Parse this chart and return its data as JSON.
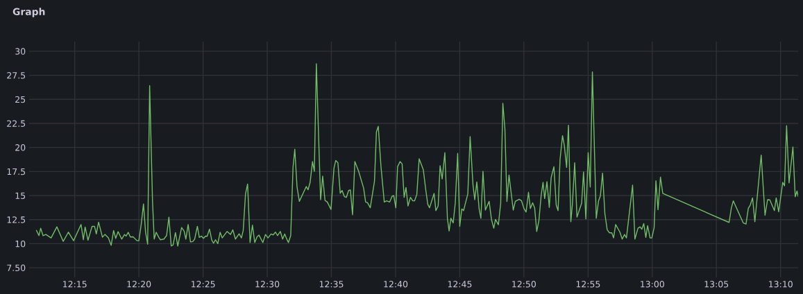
{
  "chart_data": {
    "type": "line",
    "title": "Graph",
    "xlim": [
      12.1908,
      13.1895
    ],
    "xticks": [
      {
        "value": 12.25,
        "label": "12:15"
      },
      {
        "value": 12.3333,
        "label": "12:20"
      },
      {
        "value": 12.4167,
        "label": "12:25"
      },
      {
        "value": 12.5,
        "label": "12:30"
      },
      {
        "value": 12.5833,
        "label": "12:35"
      },
      {
        "value": 12.6667,
        "label": "12:40"
      },
      {
        "value": 12.75,
        "label": "12:45"
      },
      {
        "value": 12.8333,
        "label": "12:50"
      },
      {
        "value": 12.9167,
        "label": "12:55"
      },
      {
        "value": 13.0,
        "label": "13:00"
      },
      {
        "value": 13.0833,
        "label": "13:05"
      },
      {
        "value": 13.1667,
        "label": "13:10"
      }
    ],
    "ylim": [
      6.5,
      31
    ],
    "yticks": [
      {
        "value": 7.5,
        "label": "7.50"
      },
      10,
      12.5,
      15,
      17.5,
      20,
      22.5,
      25,
      27.5,
      30
    ],
    "grid": true,
    "marker": "none",
    "line_style": "solid",
    "series": [
      {
        "color": "#73bf69",
        "x": [
          12.2003,
          12.2035,
          12.2058,
          12.2088,
          12.2125,
          12.2193,
          12.2268,
          12.235,
          12.2418,
          12.2485,
          12.2582,
          12.2612,
          12.2635,
          12.2672,
          12.2725,
          12.2757,
          12.278,
          12.281,
          12.286,
          12.2892,
          12.2937,
          12.2973,
          12.3005,
          12.3032,
          12.3063,
          12.311,
          12.3147,
          12.3167,
          12.3195,
          12.3222,
          12.3258,
          12.3308,
          12.3333,
          12.3363,
          12.3393,
          12.342,
          12.3447,
          12.3473,
          12.351,
          12.3532,
          12.3558,
          12.3592,
          12.3613,
          12.3658,
          12.3693,
          12.3723,
          12.3753,
          12.3778,
          12.3808,
          12.3838,
          12.3888,
          12.392,
          12.3943,
          12.3973,
          12.4003,
          12.4033,
          12.4058,
          12.4093,
          12.4118,
          12.4145,
          12.4172,
          12.4198,
          12.422,
          12.425,
          12.428,
          12.4303,
          12.4328,
          12.4358,
          12.4388,
          12.4415,
          12.4478,
          12.4523,
          12.4553,
          12.4587,
          12.4635,
          12.4665,
          12.4688,
          12.4718,
          12.4745,
          12.4777,
          12.4808,
          12.4838,
          12.4868,
          12.4893,
          12.4943,
          12.4977,
          12.501,
          12.505,
          12.5077,
          12.5107,
          12.5133,
          12.517,
          12.52,
          12.5227,
          12.526,
          12.5275,
          12.5305,
          12.5335,
          12.5358,
          12.5387,
          12.5417,
          12.5462,
          12.5507,
          12.553,
          12.5557,
          12.5588,
          12.5612,
          12.5638,
          12.5693,
          12.572,
          12.575,
          12.578,
          12.5828,
          12.5867,
          12.589,
          12.5918,
          12.5948,
          12.5972,
          12.6003,
          12.6027,
          12.6057,
          12.608,
          12.6108,
          12.6138,
          12.6188,
          12.6252,
          12.6278,
          12.6303,
          12.6338,
          12.6393,
          12.6418,
          12.6442,
          12.6477,
          12.652,
          12.655,
          12.659,
          12.6622,
          12.6643,
          12.667,
          12.6693,
          12.6725,
          12.6752,
          12.6778,
          12.6802,
          12.6828,
          12.686,
          12.689,
          12.6913,
          12.6943,
          12.6973,
          12.7027,
          12.7058,
          12.7085,
          12.7108,
          12.7167,
          12.719,
          12.722,
          12.7245,
          12.7272,
          12.7307,
          12.734,
          12.7362,
          12.7385,
          12.7415,
          12.7442,
          12.7473,
          12.75,
          12.7527,
          12.755,
          12.7605,
          12.7635,
          12.7672,
          12.7695,
          12.7722,
          12.7752,
          12.7775,
          12.7802,
          12.7833,
          12.7882,
          12.7912,
          12.7942,
          12.7965,
          12.8002,
          12.8032,
          12.806,
          12.8087,
          12.8113,
          12.814,
          12.8195,
          12.8222,
          12.8272,
          12.8303,
          12.8333,
          12.8362,
          12.8393,
          12.8417,
          12.8447,
          12.8473,
          12.85,
          12.8528,
          12.8558,
          12.8582,
          12.8603,
          12.8633,
          12.8663,
          12.8687,
          12.8723,
          12.8753,
          12.8777,
          12.8803,
          12.8835,
          12.8858,
          12.8888,
          12.8912,
          12.8943,
          12.8963,
          12.8993,
          12.9023,
          12.9083,
          12.9108,
          12.9138,
          12.9168,
          12.9195,
          12.9223,
          12.9273,
          12.9303,
          12.9327,
          12.9355,
          12.9385,
          12.9415,
          12.9445,
          12.9475,
          12.9498,
          12.9525,
          12.958,
          12.961,
          12.964,
          12.9665,
          12.9745,
          12.9775,
          12.9815,
          12.9842,
          12.9865,
          12.989,
          12.9917,
          12.994,
          12.9972,
          12.9995,
          13.0025,
          13.0048,
          13.0075,
          13.0107,
          13.0137,
          13.0998,
          13.1028,
          13.1053,
          13.1182,
          13.1218,
          13.1248,
          13.1273,
          13.1303,
          13.1333,
          13.1415,
          13.1465,
          13.1498,
          13.1527,
          13.1587,
          13.161,
          13.1642,
          13.1695,
          13.1718,
          13.1745,
          13.1777,
          13.1827,
          13.1857,
          13.188,
          13.1895
        ],
        "values": [
          11.37,
          10.84,
          11.61,
          10.84,
          10.96,
          10.6,
          11.75,
          10.24,
          11.2,
          10.31,
          11.99,
          10.41,
          11.73,
          10.36,
          11.8,
          11.8,
          11.01,
          12.24,
          10.67,
          10.96,
          10.6,
          9.83,
          11.37,
          10.55,
          11.25,
          10.48,
          10.96,
          10.79,
          11.18,
          10.7,
          10.72,
          10.31,
          10.31,
          11.99,
          14.13,
          11.2,
          9.95,
          26.42,
          14.45,
          10.48,
          11.18,
          10.65,
          10.41,
          10.48,
          10.84,
          12.76,
          9.76,
          9.88,
          11.15,
          9.76,
          11.68,
          11.32,
          10.48,
          11.99,
          10.19,
          10.22,
          10.48,
          11.8,
          10.65,
          10.79,
          10.55,
          10.79,
          10.77,
          11.51,
          10.36,
          10.05,
          10.41,
          10.0,
          11.18,
          10.6,
          11.27,
          10.96,
          11.44,
          10.48,
          11.03,
          10.6,
          11.37,
          15.17,
          16.2,
          10.12,
          11.92,
          10.12,
          10.72,
          10.89,
          10.12,
          10.96,
          10.6,
          11.01,
          10.91,
          11.2,
          10.84,
          11.27,
          10.48,
          11.01,
          10.36,
          10.12,
          10.84,
          17.93,
          19.81,
          15.89,
          14.4,
          15.17,
          15.94,
          15.6,
          16.37,
          18.53,
          17.52,
          28.7,
          14.57,
          17.02,
          14.5,
          14.33,
          13.56,
          17.86,
          18.65,
          18.41,
          15.24,
          15.53,
          14.88,
          14.81,
          15.53,
          15.58,
          13.0,
          18.53,
          17.5,
          15.77,
          14.33,
          14.25,
          13.73,
          16.49,
          21.61,
          22.19,
          18.05,
          14.33,
          14.45,
          14.33,
          14.93,
          15.0,
          13.73,
          18.0,
          18.53,
          18.29,
          14.81,
          15.84,
          13.92,
          14.81,
          14.45,
          14.45,
          15.12,
          18.82,
          17.69,
          15.65,
          14.09,
          13.73,
          15.22,
          13.44,
          13.92,
          18.1,
          16.73,
          19.45,
          12.64,
          11.32,
          12.64,
          12.16,
          14.21,
          19.38,
          11.8,
          13.61,
          13.44,
          15.17,
          21.13,
          16.13,
          14.57,
          16.42,
          13.61,
          12.64,
          17.52,
          13.49,
          14.4,
          12.52,
          11.61,
          12.52,
          11.97,
          14.21,
          24.59,
          21.9,
          14.38,
          17.14,
          13.49,
          14.4,
          14.62,
          14.45,
          13.68,
          13.29,
          15.34,
          13.65,
          14.25,
          13.73,
          11.27,
          12.4,
          15.05,
          16.37,
          14.69,
          16.44,
          13.77,
          16.85,
          18.0,
          14.01,
          13.44,
          18.77,
          21.23,
          20.22,
          17.93,
          22.31,
          12.28,
          14.09,
          18.41,
          12.76,
          14.21,
          17.45,
          12.57,
          19.45,
          15.89,
          27.86,
          12.64,
          14.45,
          14.98,
          17.33,
          13.13,
          11.44,
          11.13,
          11.13,
          10.6,
          11.99,
          11.2,
          10.48,
          10.96,
          10.6,
          16.08,
          10.48,
          11.61,
          11.75,
          11.51,
          12.09,
          10.65,
          11.87,
          10.6,
          10.6,
          11.68,
          16.54,
          13.53,
          16.92,
          15.22,
          12.21,
          13.73,
          14.45,
          12.16,
          12.04,
          13.68,
          14.01,
          14.76,
          12.28,
          19.21,
          12.95,
          14.57,
          14.55,
          13.44,
          14.76,
          13.32,
          16.37,
          16.01,
          22.26,
          16.32,
          20.05,
          14.88,
          15.48,
          14.93
        ]
      }
    ]
  }
}
